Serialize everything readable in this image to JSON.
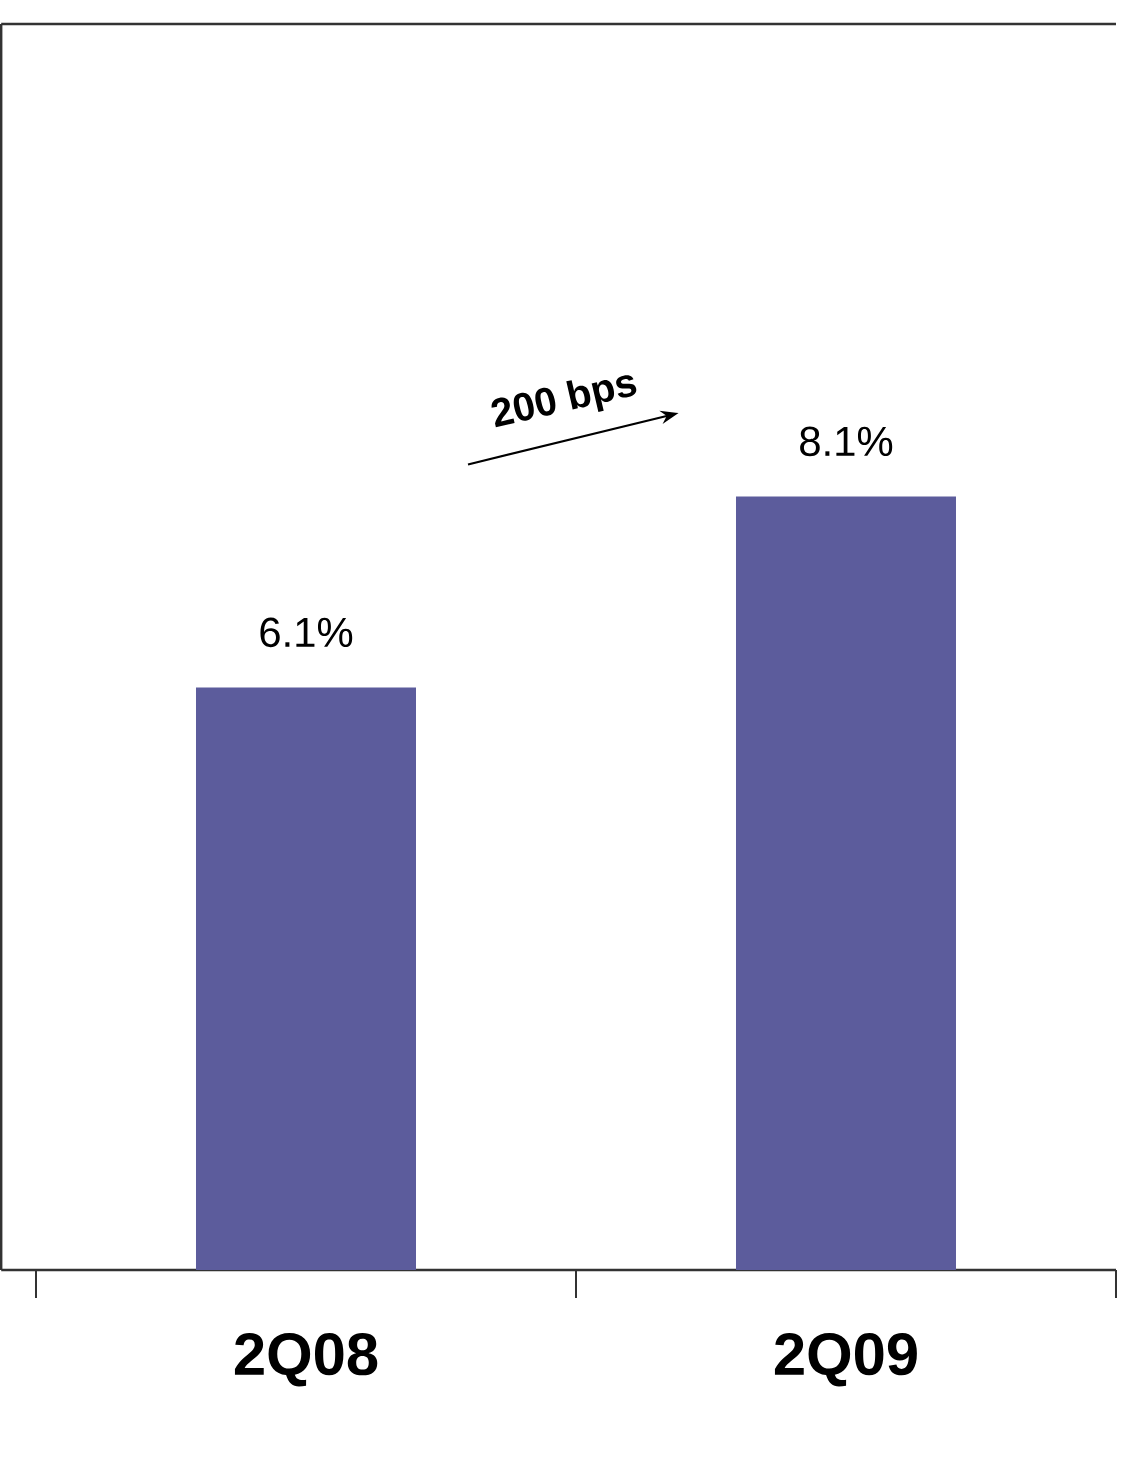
{
  "chart_data": {
    "type": "bar",
    "categories": [
      "2Q08",
      "2Q09"
    ],
    "values": [
      6.1,
      8.1
    ],
    "color": "#5c5c9c",
    "value_labels": [
      "6.1%",
      "8.1%"
    ],
    "annotations": [
      "200 bps"
    ]
  }
}
